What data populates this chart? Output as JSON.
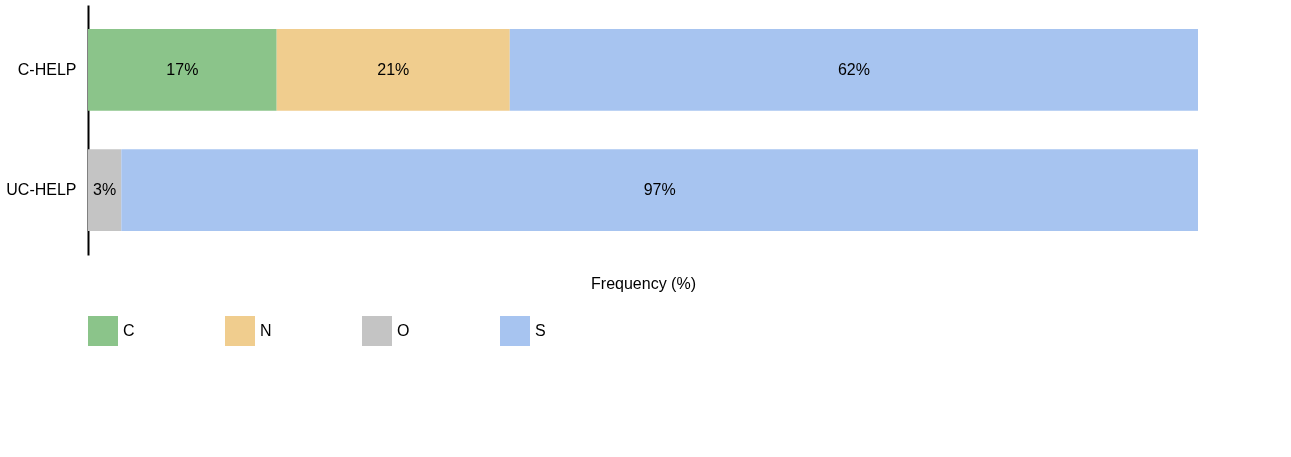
{
  "chart_data": {
    "type": "bar",
    "orientation": "horizontal",
    "stacked": true,
    "xlabel": "Frequency (%)",
    "categories": [
      "C-HELP",
      "UC-HELP"
    ],
    "xlim": [
      0,
      100
    ],
    "tick_labels": "y",
    "legend": "bottom",
    "series": [
      {
        "name": "C",
        "color": "#8bc48a",
        "values": [
          17,
          null
        ],
        "value_labels": [
          "17%",
          null
        ]
      },
      {
        "name": "N",
        "color": "#f0cd8e",
        "values": [
          21,
          null
        ],
        "value_labels": [
          "21%",
          null
        ]
      },
      {
        "name": "O",
        "color": "#c4c4c4",
        "values": [
          null,
          3
        ],
        "value_labels": [
          null,
          "3%"
        ]
      },
      {
        "name": "S",
        "color": "#a7c4f0",
        "values": [
          62,
          97
        ],
        "value_labels": [
          "62%",
          "97%"
        ]
      }
    ]
  }
}
